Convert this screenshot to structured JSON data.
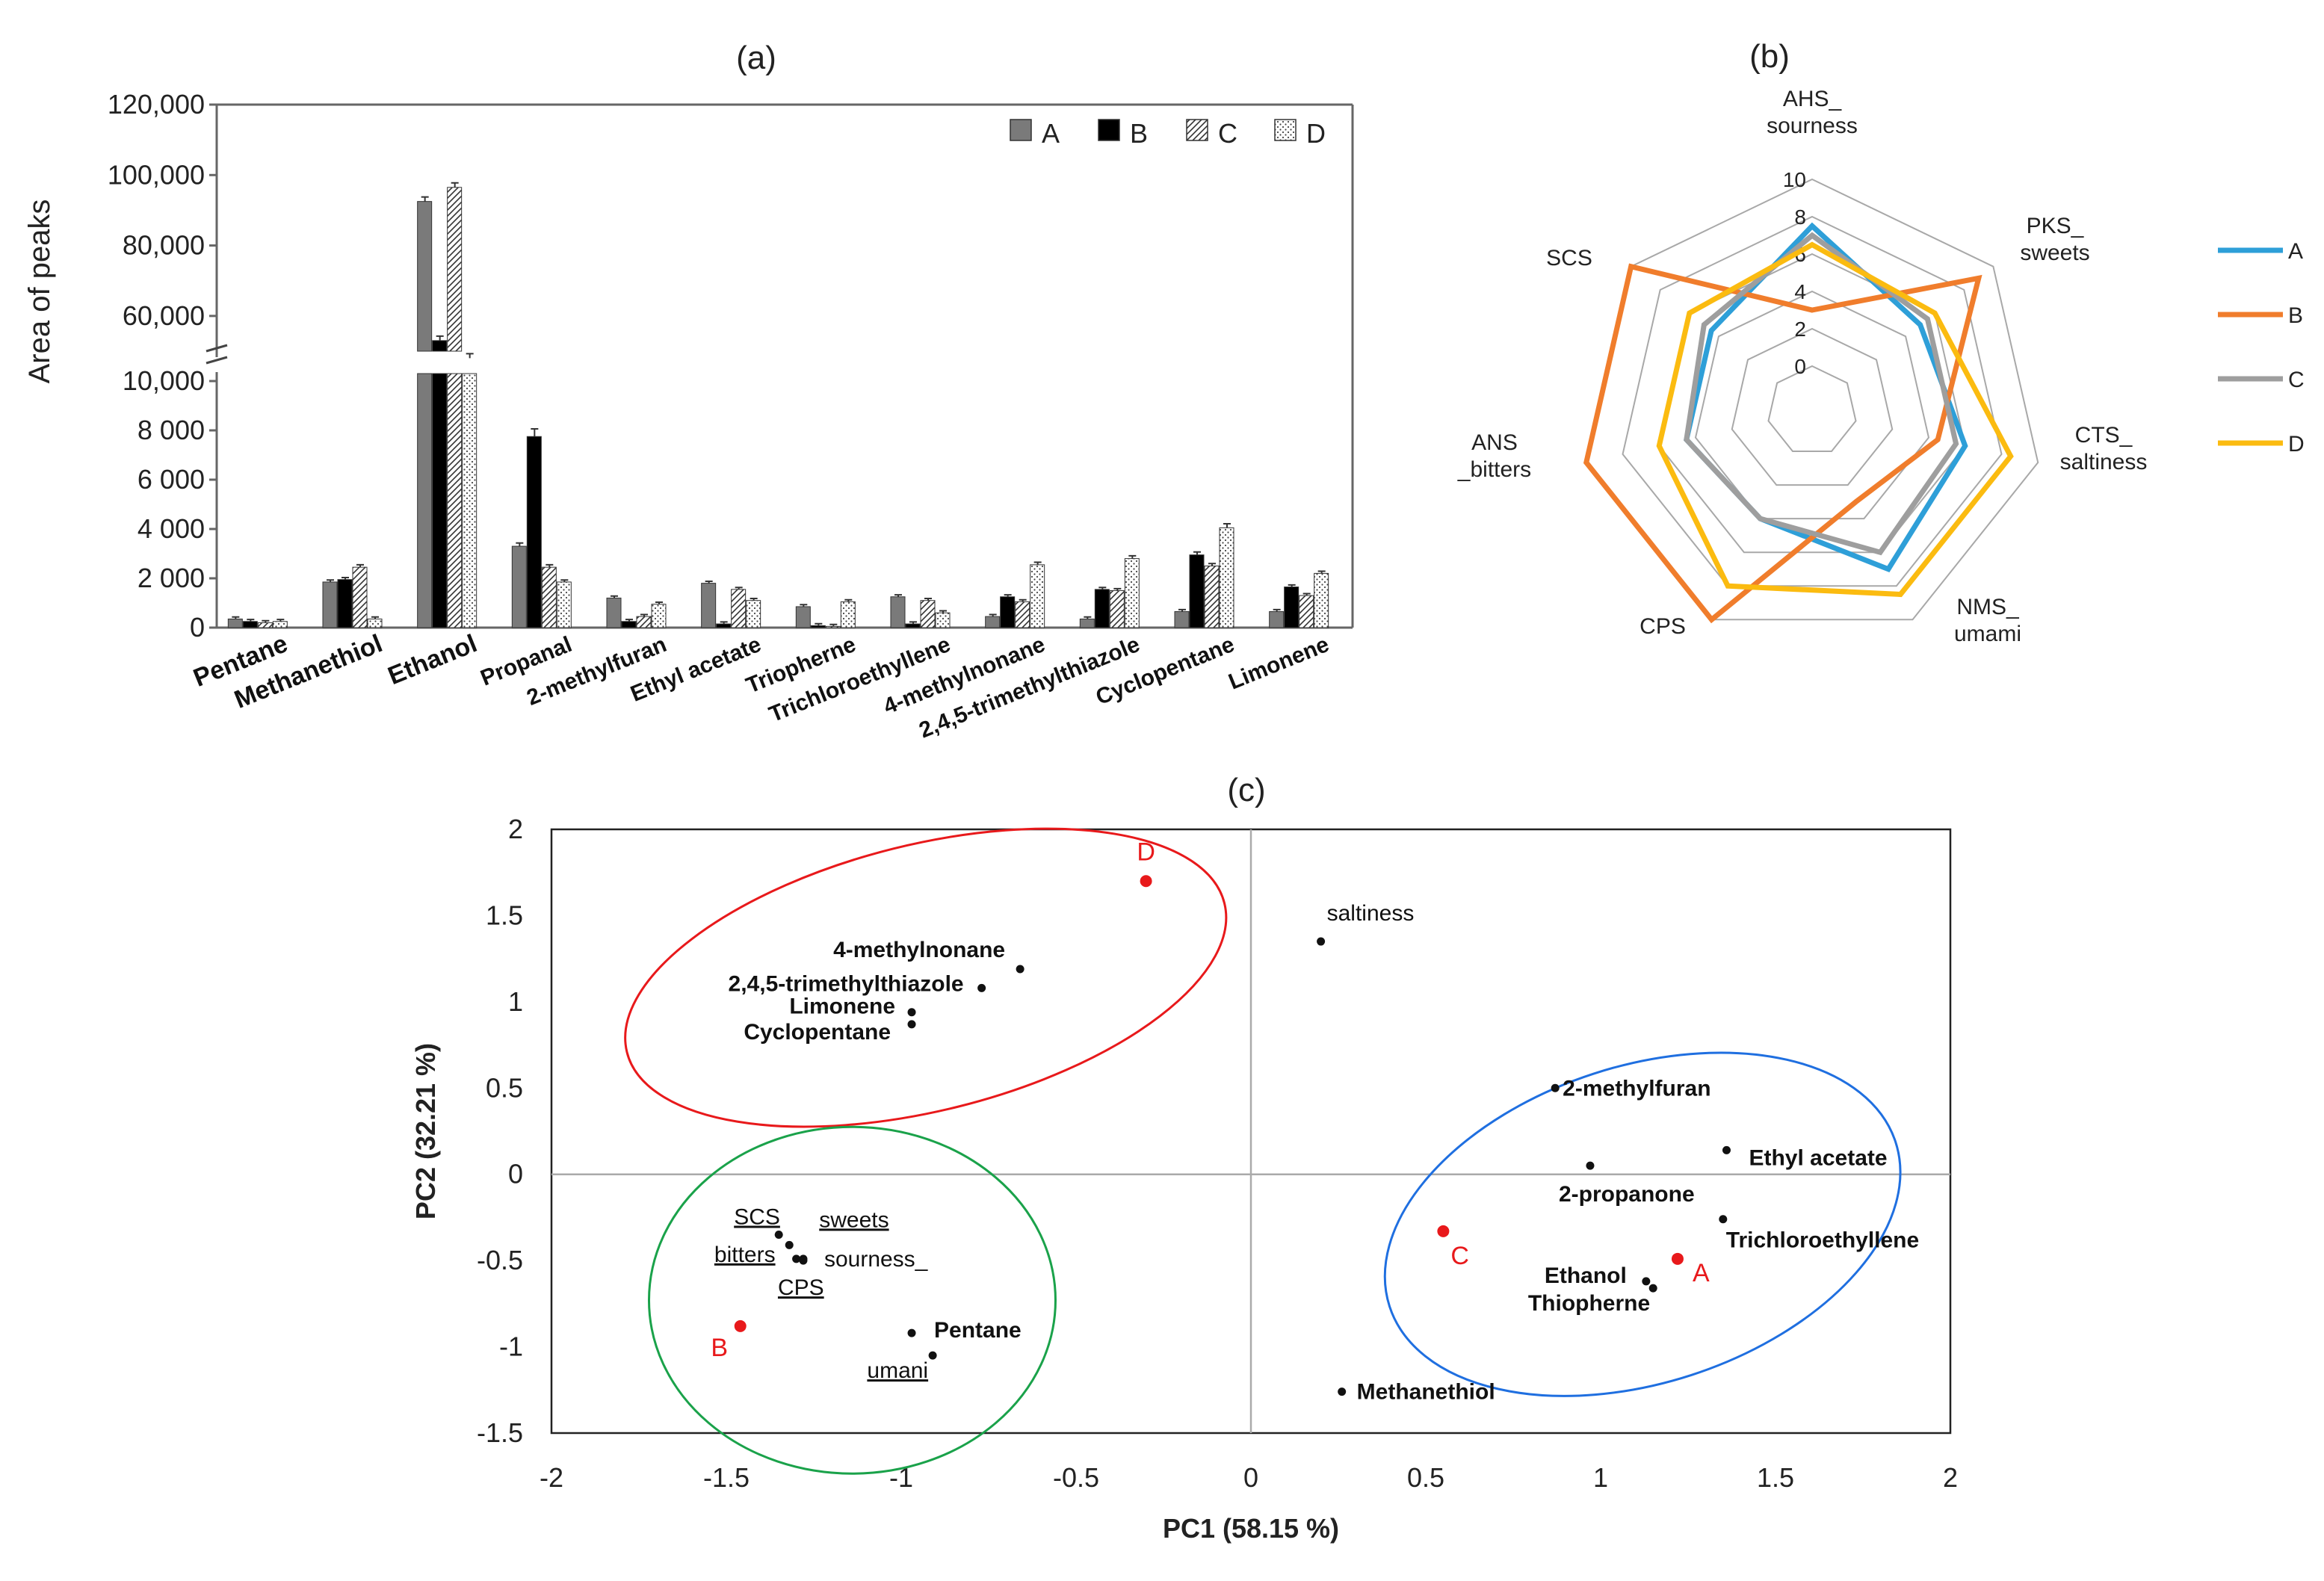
{
  "chart_data": [
    {
      "type": "bar",
      "panel_label": "(a)",
      "ylabel": "Area of peaks",
      "y_axis_break": true,
      "ylim_lower": [
        0,
        10000
      ],
      "ylim_upper": [
        50000,
        120000
      ],
      "yticks_lower": [
        "0",
        "2 000",
        "4 000",
        "6 000",
        "8 000",
        "10,000"
      ],
      "yticks_upper": [
        "60,000",
        "80,000",
        "100,000",
        "120,000"
      ],
      "categories": [
        "Pentane",
        "Methanethiol",
        "Ethanol",
        "Propanal",
        "2-methylfuran",
        "Ethyl acetate",
        "Triopherne",
        "Trichloroethyllene",
        "4-methylnonane",
        "2,4,5-trimethylthiazole",
        "Cyclopentane",
        "Limonene"
      ],
      "series": [
        {
          "name": "A",
          "values": [
            350,
            1850,
            92500,
            3300,
            1200,
            1800,
            850,
            1250,
            450,
            350,
            650,
            650
          ]
        },
        {
          "name": "B",
          "values": [
            250,
            1950,
            53000,
            7750,
            250,
            150,
            80,
            150,
            1250,
            1550,
            2950,
            1650
          ]
        },
        {
          "name": "C",
          "values": [
            200,
            2450,
            96500,
            2450,
            450,
            1550,
            50,
            1100,
            1050,
            1500,
            2500,
            1300
          ]
        },
        {
          "name": "D",
          "values": [
            250,
            350,
            48000,
            1850,
            950,
            1100,
            1050,
            600,
            2550,
            2800,
            4050,
            2200
          ]
        }
      ]
    },
    {
      "type": "radar",
      "panel_label": "(b)",
      "axes": [
        {
          "name": "AHS_",
          "sub": "sourness"
        },
        {
          "name": "PKS_",
          "sub": "sweets"
        },
        {
          "name": "CTS_",
          "sub": "saltiness"
        },
        {
          "name": "NMS_",
          "sub": "umami"
        },
        {
          "name": "CPS",
          "sub": ""
        },
        {
          "name": "ANS",
          "sub": "_bitters"
        },
        {
          "name": "SCS",
          "sub": ""
        }
      ],
      "rticks": [
        "0",
        "2",
        "4",
        "6",
        "8",
        "10"
      ],
      "rlim": [
        0,
        10
      ],
      "series": [
        {
          "name": "A",
          "color": "#2e9fd8",
          "values": [
            7.5,
            5.0,
            6.0,
            7.0,
            4.0,
            4.5,
            4.5
          ]
        },
        {
          "name": "B",
          "color": "#f07d2c",
          "values": [
            3.0,
            9.0,
            4.5,
            3.0,
            10.0,
            10.0,
            10.0
          ]
        },
        {
          "name": "C",
          "color": "#9e9e9e",
          "values": [
            7.0,
            5.5,
            5.5,
            6.0,
            4.0,
            4.5,
            5.0
          ]
        },
        {
          "name": "D",
          "color": "#fbbb10",
          "values": [
            6.5,
            6.0,
            8.5,
            8.5,
            8.0,
            6.0,
            6.0
          ]
        }
      ]
    },
    {
      "type": "scatter",
      "panel_label": "(c)",
      "xlabel": "PC1  (58.15 %)",
      "ylabel": "PC2  (32.21 %)",
      "xlim": [
        -2,
        2
      ],
      "ylim": [
        -1.5,
        2
      ],
      "xticks": [
        "-2",
        "-1.5",
        "-1",
        "-0.5",
        "0",
        "0.5",
        "1",
        "1.5",
        "2"
      ],
      "yticks": [
        "-1.5",
        "-1",
        "-0.5",
        "0",
        "0.5",
        "1",
        "1.5",
        "2"
      ],
      "points": [
        {
          "label": "D",
          "x": -0.3,
          "y": 1.7,
          "style": "sample"
        },
        {
          "label": "A",
          "x": 1.22,
          "y": -0.49,
          "style": "sample"
        },
        {
          "label": "C",
          "x": 0.55,
          "y": -0.33,
          "style": "sample"
        },
        {
          "label": "B",
          "x": -1.46,
          "y": -0.88,
          "style": "sample"
        },
        {
          "label": "saltiness",
          "x": 0.2,
          "y": 1.35,
          "style": "sensory"
        },
        {
          "label": "4-methylnonane",
          "x": -0.66,
          "y": 1.19,
          "style": "volatile"
        },
        {
          "label": "2,4,5-trimethylthiazole",
          "x": -0.77,
          "y": 1.08,
          "style": "volatile"
        },
        {
          "label": "Limonene",
          "x": -0.97,
          "y": 0.94,
          "style": "volatile"
        },
        {
          "label": "Cyclopentane",
          "x": -0.97,
          "y": 0.87,
          "style": "volatile"
        },
        {
          "label": "2-methylfuran",
          "x": 0.87,
          "y": 0.5,
          "style": "volatile"
        },
        {
          "label": "Ethyl acetate",
          "x": 1.36,
          "y": 0.14,
          "style": "volatile"
        },
        {
          "label": "2-propanone",
          "x": 0.97,
          "y": 0.05,
          "style": "volatile"
        },
        {
          "label": "Trichloroethyllene",
          "x": 1.35,
          "y": -0.26,
          "style": "volatile"
        },
        {
          "label": "Ethanol",
          "x": 1.13,
          "y": -0.62,
          "style": "volatile"
        },
        {
          "label": "Thiopherne",
          "x": 1.15,
          "y": -0.66,
          "style": "volatile"
        },
        {
          "label": "Methanethiol",
          "x": 0.26,
          "y": -1.26,
          "style": "volatile"
        },
        {
          "label": "Pentane",
          "x": -0.97,
          "y": -0.92,
          "style": "volatile"
        },
        {
          "label": "umani",
          "x": -0.91,
          "y": -1.05,
          "style": "sensory_u"
        },
        {
          "label": "SCS",
          "x": -1.35,
          "y": -0.35,
          "style": "sensory_u"
        },
        {
          "label": "sweets",
          "x": -1.32,
          "y": -0.41,
          "style": "sensory_u"
        },
        {
          "label": "bitters",
          "x": -1.3,
          "y": -0.49,
          "style": "sensory_u"
        },
        {
          "label": "sourness_",
          "x": -1.28,
          "y": -0.49,
          "style": "sensory"
        },
        {
          "label": "CPS",
          "x": -1.28,
          "y": -0.5,
          "style": "sensory_u"
        }
      ]
    }
  ]
}
